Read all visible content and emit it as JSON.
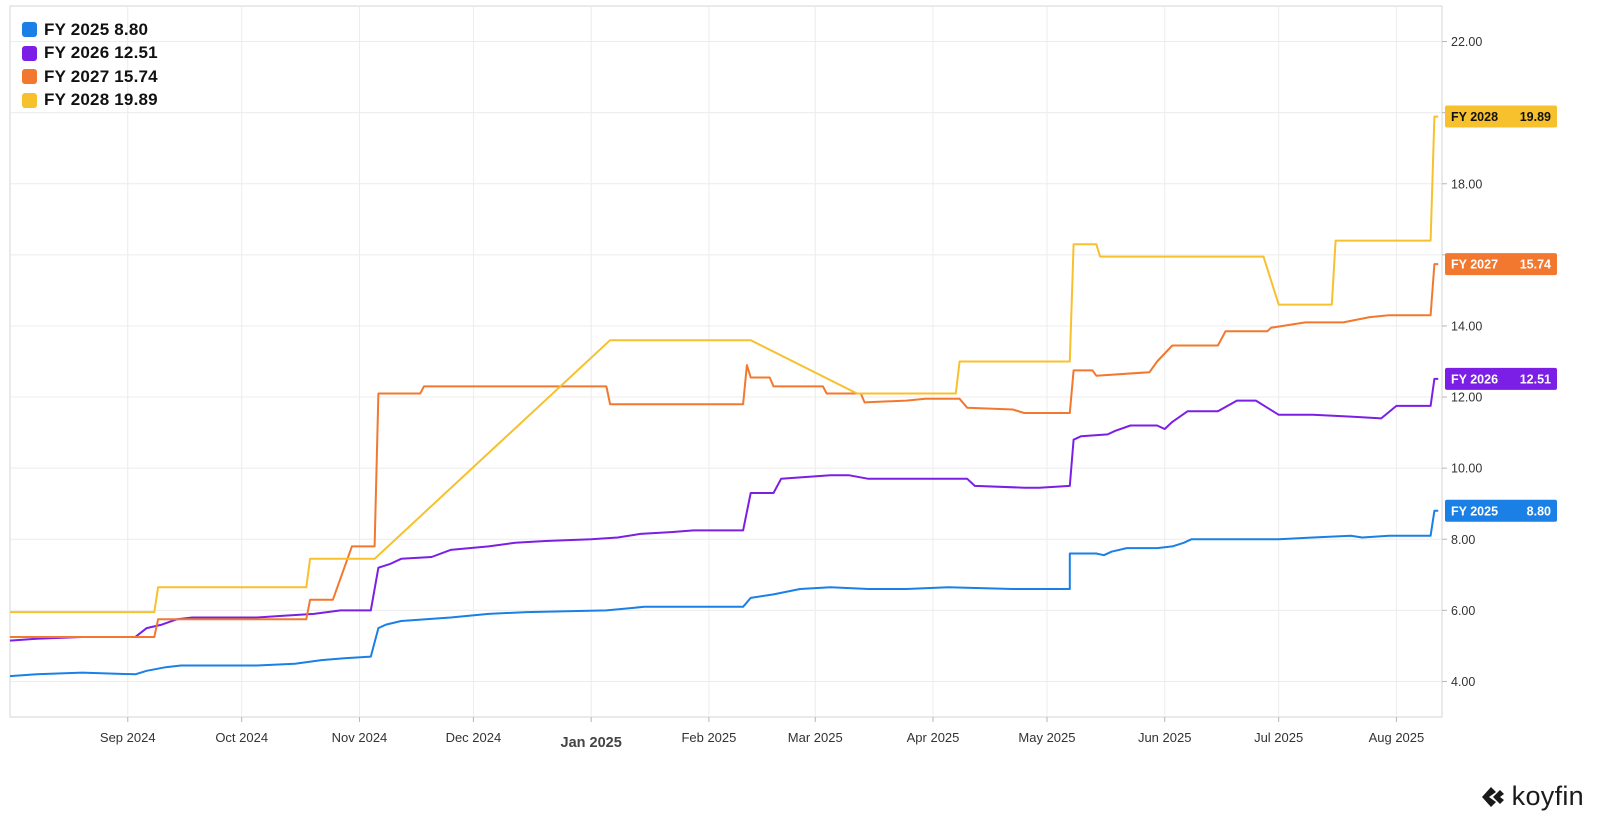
{
  "chart_data": {
    "type": "line",
    "title": "",
    "xlabel": "",
    "ylabel": "",
    "xlim": [
      "2024-08-01",
      "2025-08-13"
    ],
    "ylim": [
      3.0,
      23.0
    ],
    "yticks": [
      4.0,
      6.0,
      8.0,
      10.0,
      12.0,
      14.0,
      16.0,
      18.0,
      20.0,
      22.0
    ],
    "ytick_labels": [
      "4.00",
      "6.00",
      "8.00",
      "10.00",
      "12.00",
      "14.00",
      "18.00",
      "22.00"
    ],
    "xticks": [
      {
        "date": "2024-09-01",
        "label": "Sep 2024",
        "bold": false
      },
      {
        "date": "2024-10-01",
        "label": "Oct 2024",
        "bold": false
      },
      {
        "date": "2024-11-01",
        "label": "Nov 2024",
        "bold": false
      },
      {
        "date": "2024-12-01",
        "label": "Dec 2024",
        "bold": false
      },
      {
        "date": "2025-01-01",
        "label": "Jan 2025",
        "bold": true
      },
      {
        "date": "2025-02-01",
        "label": "Feb 2025",
        "bold": false
      },
      {
        "date": "2025-03-01",
        "label": "Mar 2025",
        "bold": false
      },
      {
        "date": "2025-04-01",
        "label": "Apr 2025",
        "bold": false
      },
      {
        "date": "2025-05-01",
        "label": "May 2025",
        "bold": false
      },
      {
        "date": "2025-06-01",
        "label": "Jun 2025",
        "bold": false
      },
      {
        "date": "2025-07-01",
        "label": "Jul 2025",
        "bold": false
      },
      {
        "date": "2025-08-01",
        "label": "Aug 2025",
        "bold": false
      }
    ],
    "grid": true,
    "legend_position": "top-left",
    "series": [
      {
        "name": "FY 2025",
        "last_value": "8.80",
        "color": "#1a80e5",
        "points": [
          [
            "2024-08-01",
            4.15
          ],
          [
            "2024-08-08",
            4.2
          ],
          [
            "2024-08-20",
            4.25
          ],
          [
            "2024-09-03",
            4.2
          ],
          [
            "2024-09-06",
            4.3
          ],
          [
            "2024-09-11",
            4.4
          ],
          [
            "2024-09-15",
            4.45
          ],
          [
            "2024-10-05",
            4.45
          ],
          [
            "2024-10-15",
            4.5
          ],
          [
            "2024-10-22",
            4.6
          ],
          [
            "2024-10-28",
            4.65
          ],
          [
            "2024-11-04",
            4.7
          ],
          [
            "2024-11-06",
            5.5
          ],
          [
            "2024-11-08",
            5.6
          ],
          [
            "2024-11-12",
            5.7
          ],
          [
            "2024-11-25",
            5.8
          ],
          [
            "2024-12-05",
            5.9
          ],
          [
            "2024-12-15",
            5.95
          ],
          [
            "2025-01-05",
            6.0
          ],
          [
            "2025-01-15",
            6.1
          ],
          [
            "2025-02-10",
            6.1
          ],
          [
            "2025-02-12",
            6.35
          ],
          [
            "2025-02-18",
            6.45
          ],
          [
            "2025-02-25",
            6.6
          ],
          [
            "2025-03-05",
            6.65
          ],
          [
            "2025-03-15",
            6.6
          ],
          [
            "2025-03-25",
            6.6
          ],
          [
            "2025-04-05",
            6.65
          ],
          [
            "2025-04-22",
            6.6
          ],
          [
            "2025-04-29",
            6.6
          ],
          [
            "2025-05-07",
            6.6
          ],
          [
            "2025-05-07",
            7.6
          ],
          [
            "2025-05-14",
            7.6
          ],
          [
            "2025-05-16",
            7.55
          ],
          [
            "2025-05-18",
            7.65
          ],
          [
            "2025-05-22",
            7.75
          ],
          [
            "2025-05-30",
            7.75
          ],
          [
            "2025-06-03",
            7.8
          ],
          [
            "2025-06-06",
            7.9
          ],
          [
            "2025-06-08",
            8.0
          ],
          [
            "2025-06-15",
            8.0
          ],
          [
            "2025-07-01",
            8.0
          ],
          [
            "2025-07-10",
            8.05
          ],
          [
            "2025-07-20",
            8.1
          ],
          [
            "2025-07-23",
            8.05
          ],
          [
            "2025-07-30",
            8.1
          ],
          [
            "2025-08-10",
            8.1
          ],
          [
            "2025-08-11",
            8.8
          ],
          [
            "2025-08-12",
            8.8
          ]
        ]
      },
      {
        "name": "FY 2026",
        "last_value": "12.51",
        "color": "#7b1fe6",
        "points": [
          [
            "2024-08-01",
            5.15
          ],
          [
            "2024-08-08",
            5.2
          ],
          [
            "2024-08-20",
            5.25
          ],
          [
            "2024-09-03",
            5.25
          ],
          [
            "2024-09-06",
            5.5
          ],
          [
            "2024-09-10",
            5.6
          ],
          [
            "2024-09-14",
            5.75
          ],
          [
            "2024-09-18",
            5.8
          ],
          [
            "2024-10-05",
            5.8
          ],
          [
            "2024-10-12",
            5.85
          ],
          [
            "2024-10-20",
            5.9
          ],
          [
            "2024-10-27",
            6.0
          ],
          [
            "2024-11-04",
            6.0
          ],
          [
            "2024-11-06",
            7.2
          ],
          [
            "2024-11-09",
            7.3
          ],
          [
            "2024-11-12",
            7.45
          ],
          [
            "2024-11-20",
            7.5
          ],
          [
            "2024-11-25",
            7.7
          ],
          [
            "2024-12-05",
            7.8
          ],
          [
            "2024-12-12",
            7.9
          ],
          [
            "2024-12-20",
            7.95
          ],
          [
            "2025-01-01",
            8.0
          ],
          [
            "2025-01-08",
            8.05
          ],
          [
            "2025-01-14",
            8.15
          ],
          [
            "2025-01-22",
            8.2
          ],
          [
            "2025-01-28",
            8.25
          ],
          [
            "2025-02-10",
            8.25
          ],
          [
            "2025-02-12",
            9.3
          ],
          [
            "2025-02-18",
            9.3
          ],
          [
            "2025-02-20",
            9.7
          ],
          [
            "2025-03-05",
            9.8
          ],
          [
            "2025-03-10",
            9.8
          ],
          [
            "2025-03-15",
            9.7
          ],
          [
            "2025-03-25",
            9.7
          ],
          [
            "2025-04-10",
            9.7
          ],
          [
            "2025-04-12",
            9.5
          ],
          [
            "2025-04-25",
            9.45
          ],
          [
            "2025-04-29",
            9.45
          ],
          [
            "2025-05-07",
            9.5
          ],
          [
            "2025-05-08",
            10.8
          ],
          [
            "2025-05-10",
            10.9
          ],
          [
            "2025-05-17",
            10.95
          ],
          [
            "2025-05-19",
            11.05
          ],
          [
            "2025-05-23",
            11.2
          ],
          [
            "2025-05-30",
            11.2
          ],
          [
            "2025-06-01",
            11.1
          ],
          [
            "2025-06-03",
            11.3
          ],
          [
            "2025-06-07",
            11.6
          ],
          [
            "2025-06-15",
            11.6
          ],
          [
            "2025-06-20",
            11.9
          ],
          [
            "2025-06-25",
            11.9
          ],
          [
            "2025-07-01",
            11.5
          ],
          [
            "2025-07-10",
            11.5
          ],
          [
            "2025-07-20",
            11.45
          ],
          [
            "2025-07-28",
            11.4
          ],
          [
            "2025-08-01",
            11.75
          ],
          [
            "2025-08-10",
            11.75
          ],
          [
            "2025-08-11",
            12.51
          ],
          [
            "2025-08-12",
            12.51
          ]
        ]
      },
      {
        "name": "FY 2027",
        "last_value": "15.74",
        "color": "#f2782f",
        "points": [
          [
            "2024-08-01",
            5.25
          ],
          [
            "2024-09-08",
            5.25
          ],
          [
            "2024-09-09",
            5.75
          ],
          [
            "2024-10-18",
            5.75
          ],
          [
            "2024-10-19",
            6.3
          ],
          [
            "2024-10-25",
            6.3
          ],
          [
            "2024-10-30",
            7.8
          ],
          [
            "2024-11-05",
            7.8
          ],
          [
            "2024-11-06",
            12.1
          ],
          [
            "2024-11-17",
            12.1
          ],
          [
            "2024-11-18",
            12.3
          ],
          [
            "2025-01-05",
            12.3
          ],
          [
            "2025-01-06",
            11.8
          ],
          [
            "2025-02-10",
            11.8
          ],
          [
            "2025-02-11",
            12.9
          ],
          [
            "2025-02-12",
            12.55
          ],
          [
            "2025-02-17",
            12.55
          ],
          [
            "2025-02-18",
            12.3
          ],
          [
            "2025-03-03",
            12.3
          ],
          [
            "2025-03-04",
            12.1
          ],
          [
            "2025-03-13",
            12.1
          ],
          [
            "2025-03-14",
            11.85
          ],
          [
            "2025-03-25",
            11.9
          ],
          [
            "2025-03-30",
            11.95
          ],
          [
            "2025-04-08",
            11.95
          ],
          [
            "2025-04-10",
            11.7
          ],
          [
            "2025-04-22",
            11.65
          ],
          [
            "2025-04-25",
            11.55
          ],
          [
            "2025-05-07",
            11.55
          ],
          [
            "2025-05-08",
            12.75
          ],
          [
            "2025-05-13",
            12.75
          ],
          [
            "2025-05-14",
            12.6
          ],
          [
            "2025-05-28",
            12.7
          ],
          [
            "2025-05-30",
            13.0
          ],
          [
            "2025-06-03",
            13.45
          ],
          [
            "2025-06-15",
            13.45
          ],
          [
            "2025-06-17",
            13.85
          ],
          [
            "2025-06-28",
            13.85
          ],
          [
            "2025-06-29",
            13.95
          ],
          [
            "2025-07-08",
            14.1
          ],
          [
            "2025-07-18",
            14.1
          ],
          [
            "2025-07-25",
            14.25
          ],
          [
            "2025-07-30",
            14.3
          ],
          [
            "2025-08-10",
            14.3
          ],
          [
            "2025-08-11",
            15.74
          ],
          [
            "2025-08-12",
            15.74
          ]
        ]
      },
      {
        "name": "FY 2028",
        "last_value": "19.89",
        "color": "#f7c12e",
        "points": [
          [
            "2024-08-01",
            5.95
          ],
          [
            "2024-09-08",
            5.95
          ],
          [
            "2024-09-09",
            6.65
          ],
          [
            "2024-10-18",
            6.65
          ],
          [
            "2024-10-19",
            7.45
          ],
          [
            "2024-11-05",
            7.45
          ],
          [
            "2025-01-06",
            13.6
          ],
          [
            "2025-02-12",
            13.6
          ],
          [
            "2025-03-12",
            12.1
          ],
          [
            "2025-04-07",
            12.1
          ],
          [
            "2025-04-08",
            13.0
          ],
          [
            "2025-05-07",
            13.0
          ],
          [
            "2025-05-08",
            16.3
          ],
          [
            "2025-05-14",
            16.3
          ],
          [
            "2025-05-15",
            15.95
          ],
          [
            "2025-06-27",
            15.95
          ],
          [
            "2025-07-01",
            14.6
          ],
          [
            "2025-07-15",
            14.6
          ],
          [
            "2025-07-16",
            16.4
          ],
          [
            "2025-08-10",
            16.4
          ],
          [
            "2025-08-11",
            19.89
          ],
          [
            "2025-08-12",
            19.89
          ]
        ]
      }
    ]
  },
  "brand": {
    "name": "koyfin"
  }
}
